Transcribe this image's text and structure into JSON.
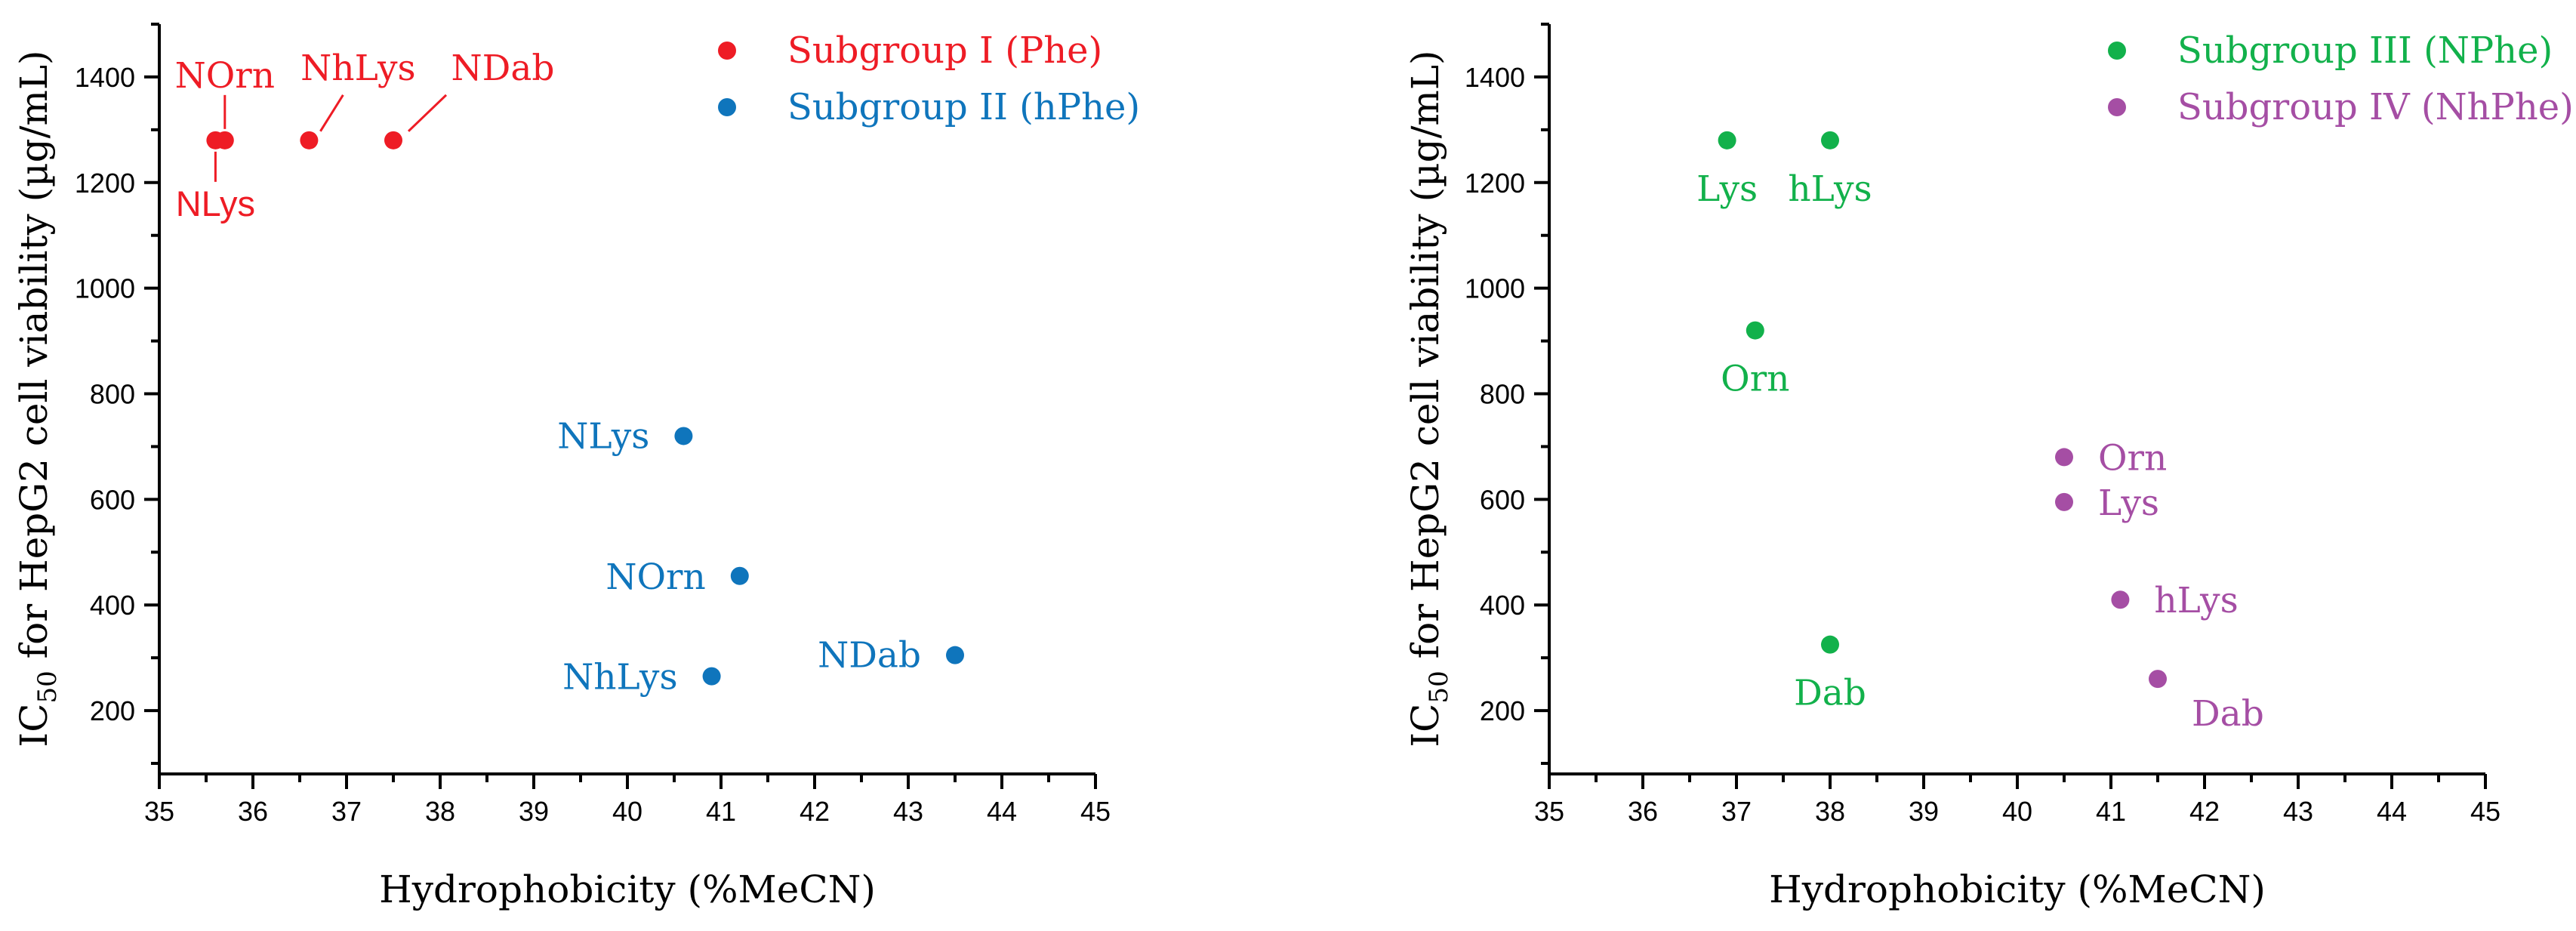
{
  "chart_data": [
    {
      "type": "scatter",
      "xlabel": "Hydrophobicity (%MeCN)",
      "ylabel_main": "IC",
      "ylabel_sub": "50",
      "ylabel_rest": " for HepG2 cell viability (µg/mL)",
      "xlim": [
        35,
        45
      ],
      "ylim": [
        80,
        1500
      ],
      "xticks": [
        35,
        36,
        37,
        38,
        39,
        40,
        41,
        42,
        43,
        44,
        45
      ],
      "yticks": [
        200,
        400,
        600,
        800,
        1000,
        1200,
        1400
      ],
      "legend_position": "top-right",
      "series": [
        {
          "name": "Subgroup I (Phe)",
          "color": "#ee1c25",
          "points": [
            {
              "label": "NOrn",
              "x": 35.7,
              "y": 1280
            },
            {
              "label": "NLys",
              "x": 35.6,
              "y": 1280
            },
            {
              "label": "NhLys",
              "x": 36.6,
              "y": 1280
            },
            {
              "label": "NDab",
              "x": 37.5,
              "y": 1280
            }
          ]
        },
        {
          "name": "Subgroup II (hPhe)",
          "color": "#0f75bc",
          "points": [
            {
              "label": "NLys",
              "x": 40.6,
              "y": 720
            },
            {
              "label": "NOrn",
              "x": 41.2,
              "y": 455
            },
            {
              "label": "NhLys",
              "x": 40.9,
              "y": 265
            },
            {
              "label": "NDab",
              "x": 43.5,
              "y": 305
            }
          ]
        }
      ]
    },
    {
      "type": "scatter",
      "xlabel": "Hydrophobicity (%MeCN)",
      "ylabel_main": "IC",
      "ylabel_sub": "50",
      "ylabel_rest": " for HepG2 cell viability (µg/mL)",
      "xlim": [
        35,
        45
      ],
      "ylim": [
        80,
        1500
      ],
      "xticks": [
        35,
        36,
        37,
        38,
        39,
        40,
        41,
        42,
        43,
        44,
        45
      ],
      "yticks": [
        200,
        400,
        600,
        800,
        1000,
        1200,
        1400
      ],
      "legend_position": "top-right",
      "series": [
        {
          "name": "Subgroup III (NPhe)",
          "color": "#12b14b",
          "points": [
            {
              "label": "Lys",
              "x": 36.9,
              "y": 1280
            },
            {
              "label": "hLys",
              "x": 38.0,
              "y": 1280
            },
            {
              "label": "Orn",
              "x": 37.2,
              "y": 920
            },
            {
              "label": "Dab",
              "x": 38.0,
              "y": 325
            }
          ]
        },
        {
          "name": "Subgroup IV (NhPhe)",
          "color": "#a54ea4",
          "points": [
            {
              "label": "Orn",
              "x": 40.5,
              "y": 680
            },
            {
              "label": "Lys",
              "x": 40.5,
              "y": 595
            },
            {
              "label": "hLys",
              "x": 41.1,
              "y": 410
            },
            {
              "label": "Dab",
              "x": 41.5,
              "y": 260
            }
          ]
        }
      ]
    }
  ]
}
